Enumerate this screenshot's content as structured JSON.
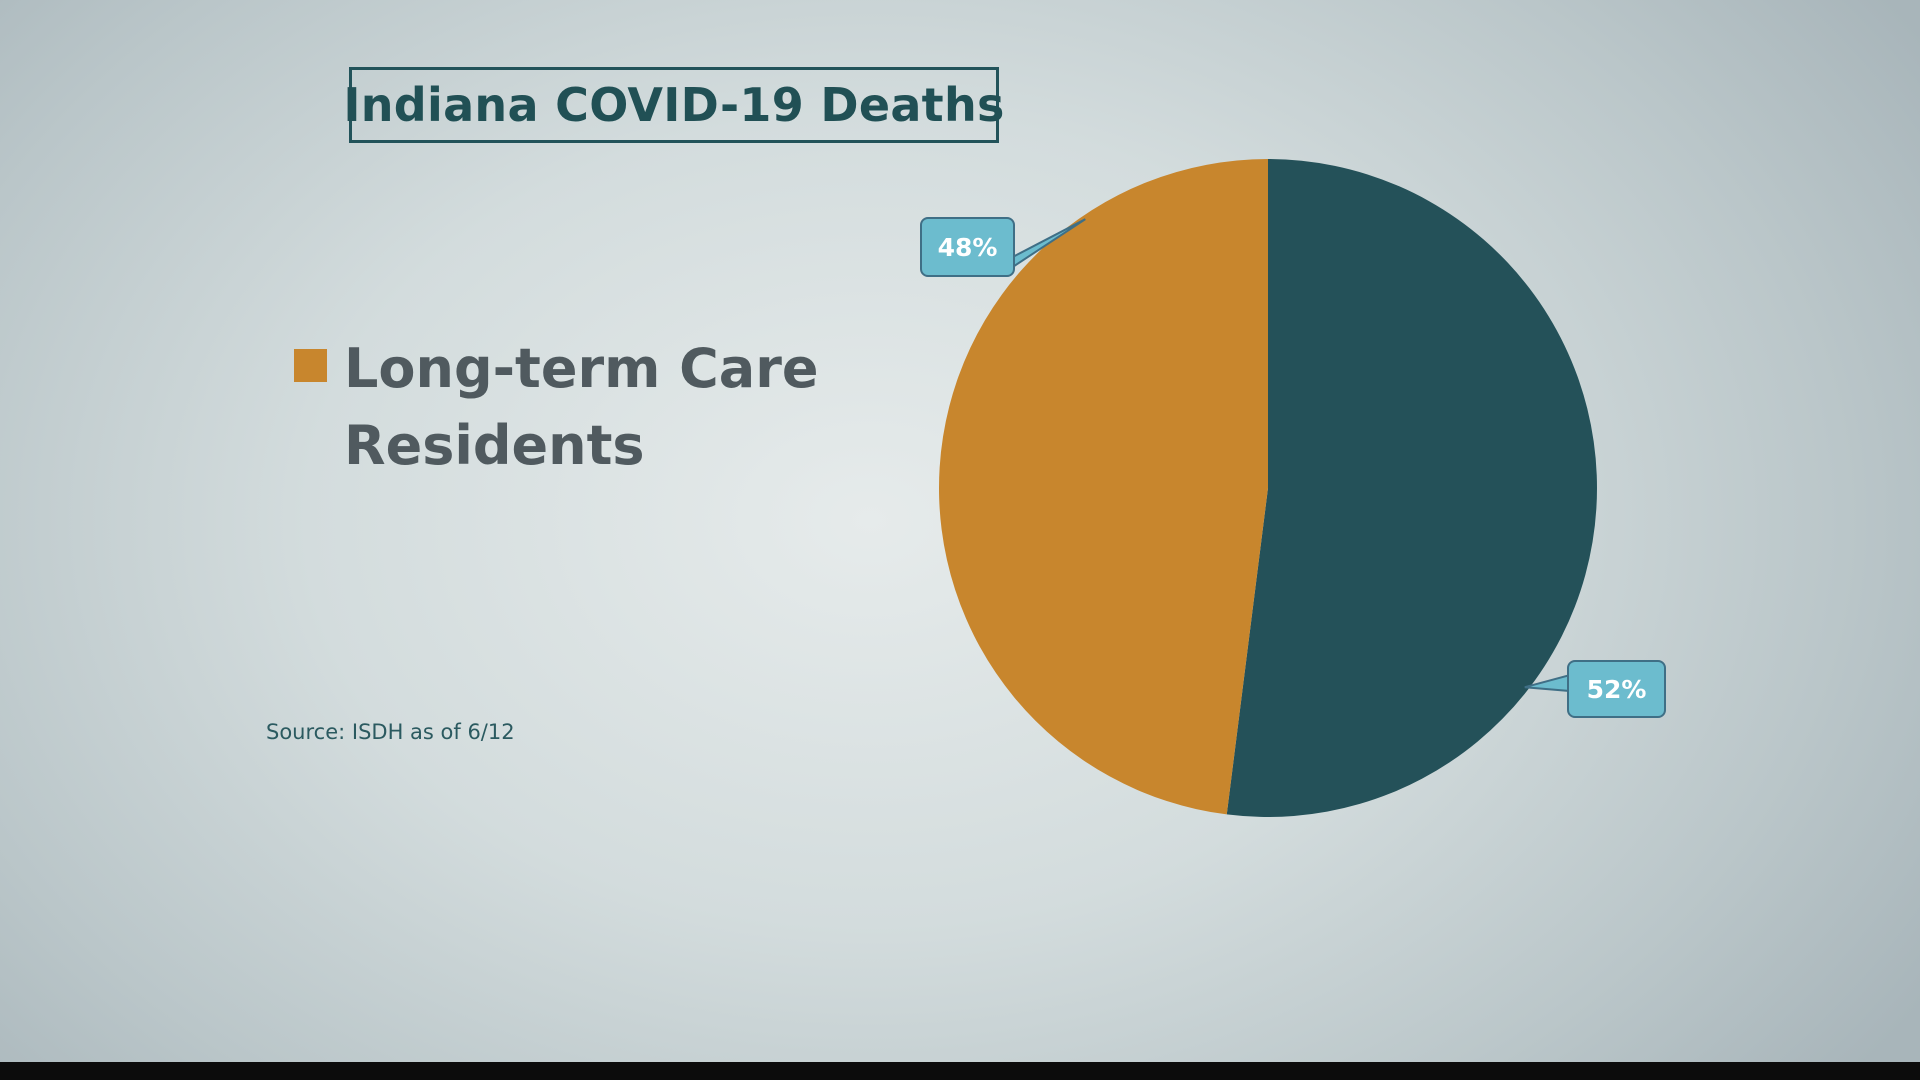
{
  "title": "Indiana COVID-19 Deaths",
  "source": "Source: ISDH as of 6/12",
  "colors": {
    "long_term_care": "#c8862d",
    "other": "#245159",
    "callout_fill": "#6cbcce",
    "callout_stroke": "#3f6f86"
  },
  "chart_data": {
    "type": "pie",
    "title": "Indiana COVID-19 Deaths",
    "legend_position": "left",
    "slices": [
      {
        "name": "",
        "value": 52,
        "label": "52%",
        "color": "#245159"
      },
      {
        "name": "Long-term Care Residents",
        "value": 48,
        "label": "48%",
        "color": "#c8862d"
      }
    ],
    "legend": [
      {
        "label": "Long-term Care Residents",
        "color": "#c8862d"
      }
    ]
  }
}
